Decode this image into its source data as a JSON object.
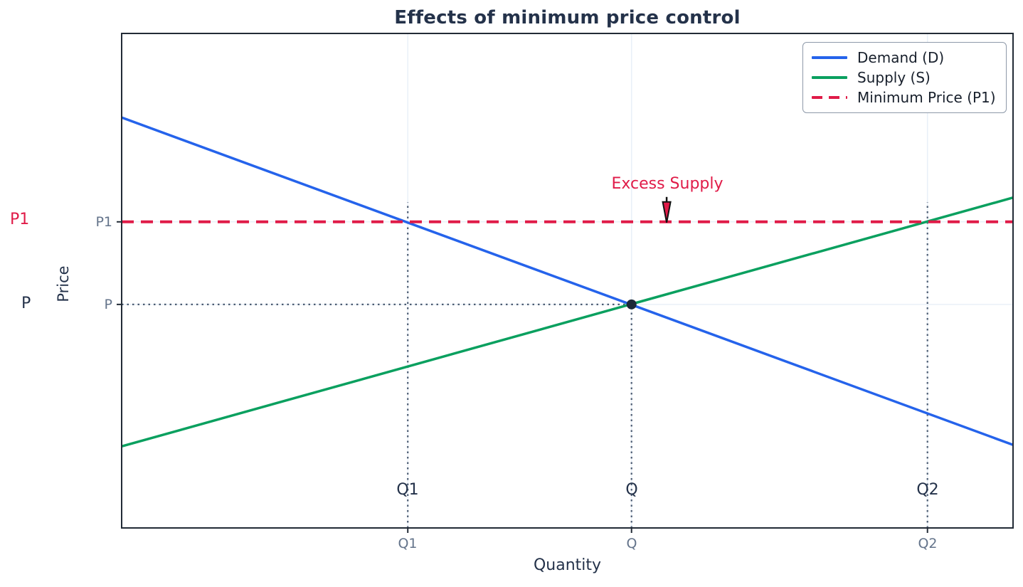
{
  "page": {
    "background": "#ffffff"
  },
  "chart_data": {
    "type": "line",
    "title": "Effects of minimum price control",
    "xlabel": "Quantity",
    "ylabel": "Price",
    "grid": true,
    "legend_position": "upper right",
    "x_axis": {
      "ticks": [
        {
          "label": "Q1",
          "f": 0.321
        },
        {
          "label": "Q",
          "f": 0.572
        },
        {
          "label": "Q2",
          "f": 0.904
        }
      ]
    },
    "y_axis": {
      "ticks": [
        {
          "label": "P1",
          "f": 0.619
        },
        {
          "label": "P",
          "f": 0.452
        }
      ]
    },
    "series": [
      {
        "name": "Demand (D)",
        "color": "#2563eb",
        "style": "solid",
        "points_f": [
          [
            0,
            0.83
          ],
          [
            1,
            0.168
          ]
        ]
      },
      {
        "name": "Supply (S)",
        "color": "#0aa05f",
        "style": "solid",
        "points_f": [
          [
            0,
            0.165
          ],
          [
            1,
            0.668
          ]
        ]
      },
      {
        "name": "Minimum Price (P1)",
        "color": "#e01b48",
        "style": "dashed",
        "points_f": [
          [
            0,
            0.619
          ],
          [
            1,
            0.619
          ]
        ]
      }
    ],
    "equilibrium": {
      "xf": 0.572,
      "yf": 0.452,
      "quantity_label": "Q",
      "price_label": "P"
    },
    "price_floor": {
      "yf": 0.619,
      "label": "P1",
      "demand_intersect_xf": 0.321,
      "supply_intersect_xf": 0.904
    },
    "guides": [
      {
        "type": "v",
        "xf": 0.321,
        "y0f": 0.0,
        "y1f": 0.659
      },
      {
        "type": "v",
        "xf": 0.572,
        "y0f": 0.0,
        "y1f": 0.452
      },
      {
        "type": "v",
        "xf": 0.904,
        "y0f": 0.0,
        "y1f": 0.659
      },
      {
        "type": "h",
        "yf": 0.452,
        "x0f": 0.0,
        "x1f": 0.572
      }
    ],
    "annotations": {
      "excess_supply": "Excess Supply",
      "excess_supply_arrow_xf": 0.6114,
      "price_axis": [
        {
          "text": "P1",
          "color": "#e01b48"
        },
        {
          "text": "P",
          "color": "#24324a"
        }
      ],
      "quantity_axis": [
        {
          "text": "Q1"
        },
        {
          "text": "Q"
        },
        {
          "text": "Q2"
        }
      ]
    },
    "colors": {
      "grid": "#e9f0f8",
      "axis": "#222b36",
      "guide": "#4d5d73",
      "dot": "#1c2838",
      "annotation": "#e01b48",
      "tick_label": "#64748b",
      "text": "#24324a"
    }
  }
}
